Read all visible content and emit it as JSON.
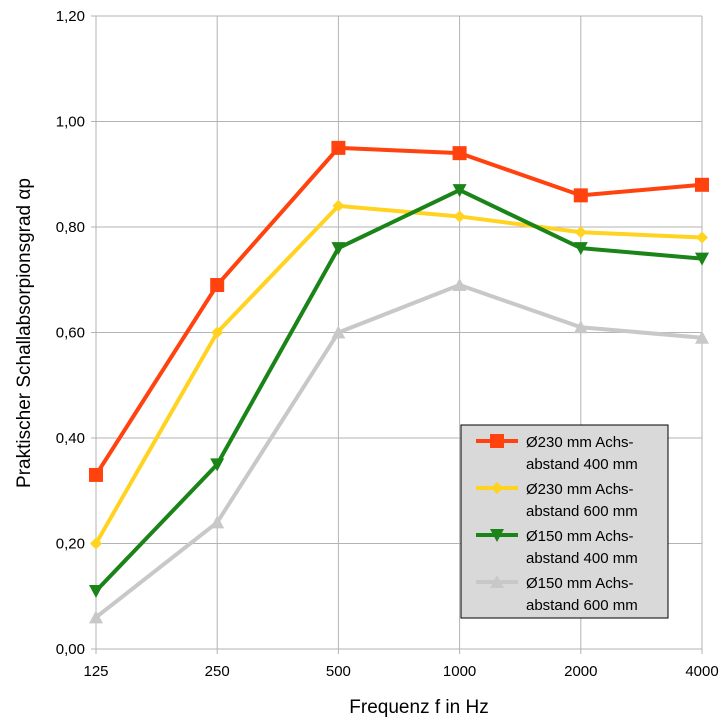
{
  "chart_data": {
    "type": "line",
    "title": "",
    "xlabel": "Frequenz f in Hz",
    "ylabel": "Praktischer Schallabsorpionsgrad αp",
    "categories": [
      "125",
      "250",
      "500",
      "1000",
      "2000",
      "4000"
    ],
    "ylim": [
      0,
      1.2
    ],
    "yticks": [
      "0,00",
      "0,20",
      "0,40",
      "0,60",
      "0,80",
      "1,00",
      "1,20"
    ],
    "grid": true,
    "legend_position": "bottom-right",
    "series": [
      {
        "name": "Ø230 mm Achs-abstand 400 mm",
        "legend_lines": [
          "Ø230 mm Achs-",
          "abstand 400 mm"
        ],
        "color": "#ff420e",
        "marker": "square",
        "values": [
          0.33,
          0.69,
          0.95,
          0.94,
          0.86,
          0.88
        ]
      },
      {
        "name": "Ø230 mm Achs-abstand 600 mm",
        "legend_lines": [
          "Ø230 mm Achs-",
          "abstand 600 mm"
        ],
        "color": "#ffd320",
        "marker": "diamond",
        "values": [
          0.2,
          0.6,
          0.84,
          0.82,
          0.79,
          0.78
        ]
      },
      {
        "name": "Ø150 mm Achs-abstand 400 mm",
        "legend_lines": [
          "Ø150 mm Achs-",
          "abstand 400 mm"
        ],
        "color": "#1a8418",
        "marker": "triangle-down",
        "values": [
          0.11,
          0.35,
          0.76,
          0.87,
          0.76,
          0.74
        ]
      },
      {
        "name": "Ø150 mm Achs-abstand 600 mm",
        "legend_lines": [
          "Ø150 mm Achs-",
          "abstand 600 mm"
        ],
        "color": "#c8c8c8",
        "marker": "triangle-up",
        "values": [
          0.06,
          0.24,
          0.6,
          0.69,
          0.61,
          0.59
        ]
      }
    ]
  }
}
